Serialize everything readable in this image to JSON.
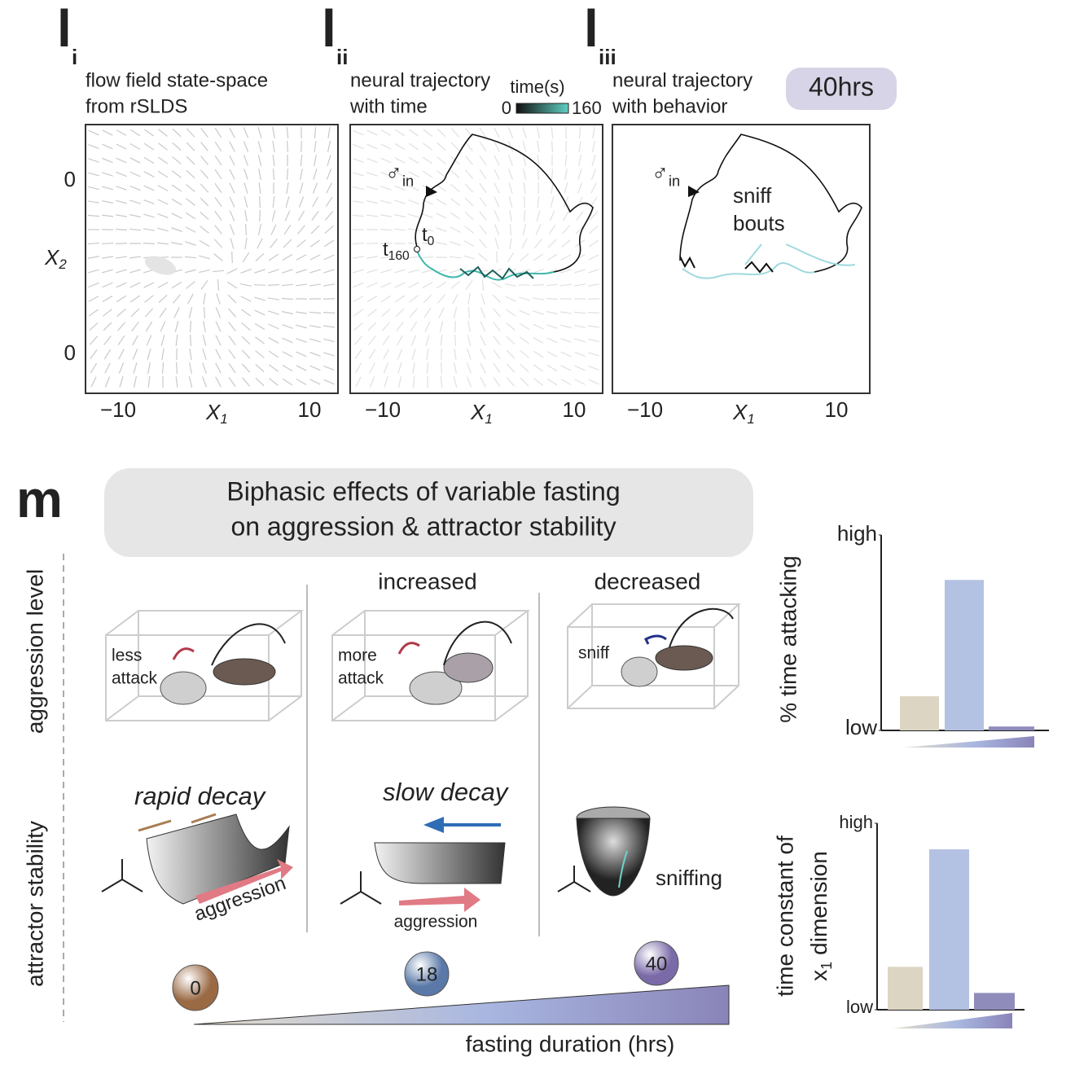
{
  "panel_l": {
    "panels": [
      {
        "label": "l",
        "sub": "i",
        "title": [
          "flow field state-space",
          "from rSLDS"
        ],
        "yticks": [
          "0",
          "0"
        ],
        "xticks": [
          "−10",
          "10"
        ],
        "xlabel": "X",
        "xlabel_sub": "1",
        "ylabel": "X",
        "ylabel_sub": "2"
      },
      {
        "label": "l",
        "sub": "ii",
        "title": [
          "neural trajectory",
          "with time"
        ],
        "xticks": [
          "−10",
          "10"
        ],
        "xlabel": "X",
        "xlabel_sub": "1",
        "colorbar": {
          "title": "time(s)",
          "min": "0",
          "max": "160"
        },
        "marker": "♂",
        "marker_sub": "in",
        "start": "t",
        "start_sub": "0",
        "end": "t",
        "end_sub": "160"
      },
      {
        "label": "l",
        "sub": "iii",
        "title": [
          "neural trajectory",
          "with behavior"
        ],
        "xticks": [
          "−10",
          "10"
        ],
        "xlabel": "X",
        "xlabel_sub": "1",
        "badge": "40hrs",
        "marker": "♂",
        "marker_sub": "in",
        "annotation": [
          "sniff",
          "bouts"
        ]
      }
    ]
  },
  "panel_m": {
    "label": "m",
    "title": [
      "Biphasic effects of variable fasting",
      "on aggression & attractor stability"
    ],
    "row_labels": [
      "aggression level",
      "attractor stability"
    ],
    "headers": [
      "increased",
      "decreased"
    ],
    "cage_labels": [
      [
        "less",
        "attack"
      ],
      [
        "more",
        "attack"
      ],
      [
        "sniff"
      ]
    ],
    "attractors": [
      {
        "title": "rapid decay",
        "arrow": "aggression"
      },
      {
        "title": "slow decay",
        "arrow": "aggression"
      },
      {
        "label": "sniffing"
      }
    ],
    "badges": [
      "0",
      "18",
      "40"
    ],
    "xlabel": "fasting duration (hrs)"
  },
  "chart_data": [
    {
      "type": "bar",
      "ylabel": [
        "% time attacking"
      ],
      "categories": [
        null,
        null,
        null
      ],
      "values": [
        17.5,
        77,
        2
      ],
      "colors": [
        "#dcd5c3",
        "#b3c1e2",
        "#8f8cbc"
      ],
      "ylim": [
        0,
        100
      ],
      "yticks": [
        {
          "value": 0,
          "label": "low"
        },
        {
          "value": 100,
          "label": "high"
        }
      ]
    },
    {
      "type": "bar",
      "ylabel": [
        "time constant of",
        "x",
        "1",
        "dimension"
      ],
      "categories": [
        null,
        null,
        null
      ],
      "values": [
        23,
        86,
        9
      ],
      "colors": [
        "#dcd5c3",
        "#b3c1e2",
        "#8f8cbc"
      ],
      "ylim": [
        0,
        100
      ],
      "yticks": [
        {
          "value": 0,
          "label": "low"
        },
        {
          "value": 100,
          "label": "high"
        }
      ]
    }
  ]
}
